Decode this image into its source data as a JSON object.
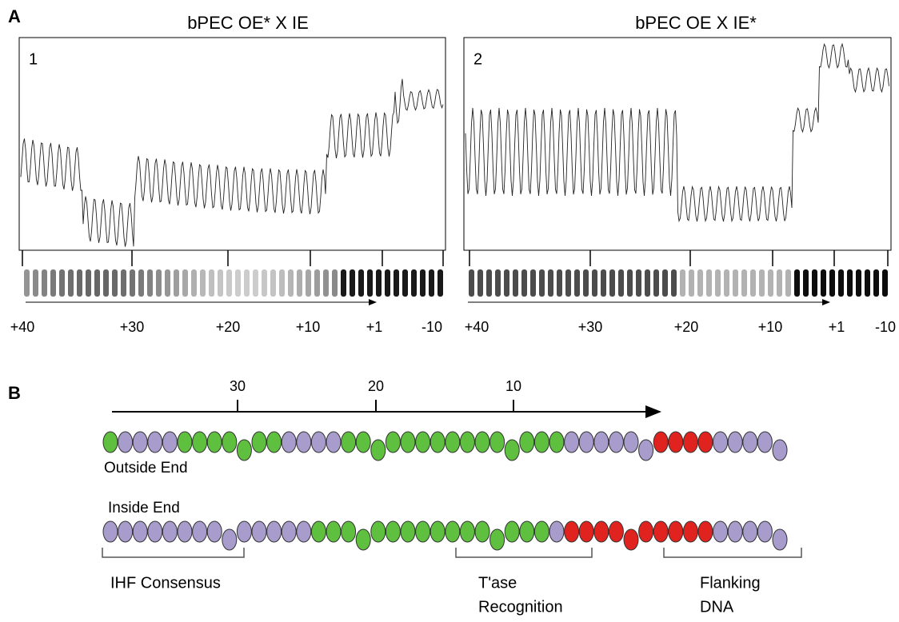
{
  "panel_a": {
    "label": "A",
    "plots": [
      {
        "title": "bPEC OE* X IE",
        "number": "1",
        "positions": [
          "+40",
          "+30",
          "+20",
          "+10",
          "+1",
          "-10"
        ]
      },
      {
        "title": "bPEC OE X IE*",
        "number": "2",
        "positions": [
          "+40",
          "+30",
          "+20",
          "+10",
          "+1",
          "-10"
        ]
      }
    ]
  },
  "panel_b": {
    "label": "B",
    "scale": [
      "30",
      "20",
      "10"
    ],
    "strands": [
      "Outside End",
      "Inside End"
    ],
    "regions": [
      [
        "IHF Consensus"
      ],
      [
        "T'ase",
        "Recognition"
      ],
      [
        "Flanking",
        "DNA"
      ]
    ]
  }
}
